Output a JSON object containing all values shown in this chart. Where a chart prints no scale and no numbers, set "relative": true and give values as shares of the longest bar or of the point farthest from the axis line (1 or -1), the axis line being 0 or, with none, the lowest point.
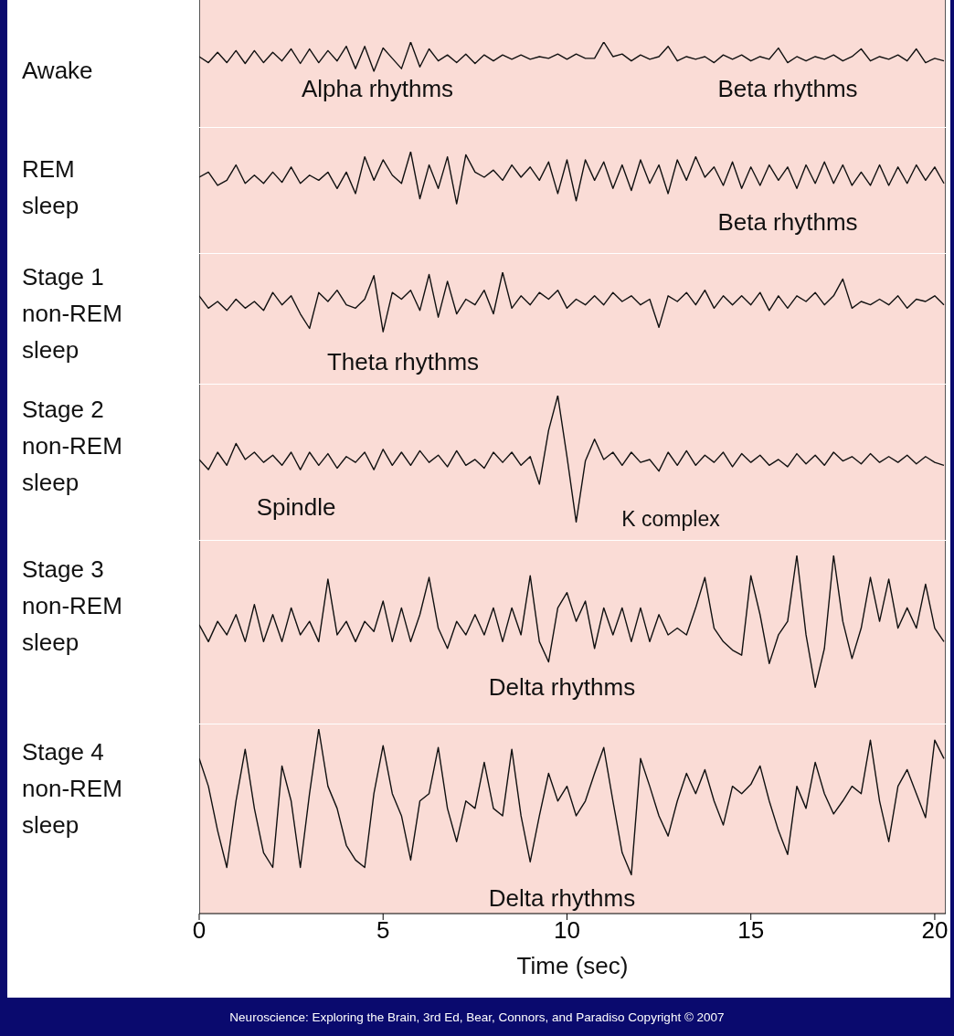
{
  "chart_data": [
    {
      "type": "line",
      "ylabel": "Awake",
      "relative": true,
      "marker": "none",
      "color": "#111111",
      "xlim": [
        0,
        20.3
      ],
      "tick_labels": false,
      "annotations": [
        "Alpha rhythms",
        "Beta rhythms"
      ],
      "x": [
        0,
        0.25,
        0.5,
        0.75,
        1,
        1.25,
        1.5,
        1.75,
        2,
        2.25,
        2.5,
        2.75,
        3,
        3.25,
        3.5,
        3.75,
        4,
        4.25,
        4.5,
        4.75,
        5,
        5.25,
        5.5,
        5.75,
        6,
        6.25,
        6.5,
        6.75,
        7,
        7.25,
        7.5,
        7.75,
        8,
        8.25,
        8.5,
        8.75,
        9,
        9.25,
        9.5,
        9.75,
        10,
        10.25,
        10.5,
        10.75,
        11,
        11.25,
        11.5,
        11.75,
        12,
        12.25,
        12.5,
        12.75,
        13,
        13.25,
        13.5,
        13.75,
        14,
        14.25,
        14.5,
        14.75,
        15,
        15.25,
        15.5,
        15.75,
        16,
        16.25,
        16.5,
        16.75,
        17,
        17.25,
        17.5,
        17.75,
        18,
        18.25,
        18.5,
        18.75,
        19,
        19.25,
        19.5,
        19.75,
        20,
        20.25
      ],
      "values": [
        0.83,
        0.76,
        0.88,
        0.76,
        0.9,
        0.75,
        0.9,
        0.76,
        0.88,
        0.78,
        0.92,
        0.75,
        0.92,
        0.76,
        0.9,
        0.78,
        0.95,
        0.69,
        0.95,
        0.66,
        0.93,
        0.81,
        0.69,
        1,
        0.71,
        0.92,
        0.78,
        0.85,
        0.76,
        0.86,
        0.75,
        0.85,
        0.78,
        0.85,
        0.8,
        0.85,
        0.8,
        0.83,
        0.81,
        0.86,
        0.8,
        0.86,
        0.81,
        0.81,
        1,
        0.83,
        0.86,
        0.78,
        0.85,
        0.8,
        0.83,
        0.95,
        0.78,
        0.83,
        0.8,
        0.83,
        0.76,
        0.85,
        0.8,
        0.85,
        0.78,
        0.83,
        0.8,
        0.93,
        0.76,
        0.83,
        0.78,
        0.83,
        0.8,
        0.85,
        0.78,
        0.83,
        0.92,
        0.78,
        0.83,
        0.8,
        0.85,
        0.78,
        0.92,
        0.76,
        0.81,
        0.78
      ]
    },
    {
      "type": "line",
      "ylabel": "REM sleep",
      "relative": true,
      "marker": "none",
      "color": "#111111",
      "xlim": [
        0,
        20.3
      ],
      "tick_labels": false,
      "annotations": [
        "Beta rhythms"
      ],
      "x": [
        0,
        0.25,
        0.5,
        0.75,
        1,
        1.25,
        1.5,
        1.75,
        2,
        2.25,
        2.5,
        2.75,
        3,
        3.25,
        3.5,
        3.75,
        4,
        4.25,
        4.5,
        4.75,
        5,
        5.25,
        5.5,
        5.75,
        6,
        6.25,
        6.5,
        6.75,
        7,
        7.25,
        7.5,
        7.75,
        8,
        8.25,
        8.5,
        8.75,
        9,
        9.25,
        9.5,
        9.75,
        10,
        10.25,
        10.5,
        10.75,
        11,
        11.25,
        11.5,
        11.75,
        12,
        12.25,
        12.5,
        12.75,
        13,
        13.25,
        13.5,
        13.75,
        14,
        14.25,
        14.5,
        14.75,
        15,
        15.25,
        15.5,
        15.75,
        16,
        16.25,
        16.5,
        16.75,
        17,
        17.25,
        17.5,
        17.75,
        18,
        18.25,
        18.5,
        18.75,
        19,
        19.25,
        19.5,
        19.75,
        20,
        20.25
      ],
      "values": [
        0.75,
        0.8,
        0.67,
        0.72,
        0.87,
        0.69,
        0.77,
        0.69,
        0.8,
        0.7,
        0.85,
        0.69,
        0.77,
        0.72,
        0.8,
        0.64,
        0.8,
        0.59,
        0.95,
        0.72,
        0.92,
        0.77,
        0.69,
        1,
        0.54,
        0.87,
        0.64,
        0.95,
        0.49,
        0.97,
        0.8,
        0.75,
        0.82,
        0.72,
        0.87,
        0.75,
        0.85,
        0.72,
        0.9,
        0.59,
        0.92,
        0.52,
        0.92,
        0.72,
        0.9,
        0.64,
        0.87,
        0.62,
        0.92,
        0.69,
        0.87,
        0.59,
        0.92,
        0.72,
        0.95,
        0.75,
        0.85,
        0.67,
        0.9,
        0.64,
        0.85,
        0.67,
        0.87,
        0.72,
        0.85,
        0.64,
        0.87,
        0.69,
        0.9,
        0.69,
        0.87,
        0.67,
        0.8,
        0.67,
        0.87,
        0.67,
        0.85,
        0.69,
        0.87,
        0.72,
        0.85,
        0.69
      ]
    },
    {
      "type": "line",
      "ylabel": "Stage 1 non-REM sleep",
      "relative": true,
      "marker": "none",
      "color": "#111111",
      "xlim": [
        0,
        20.3
      ],
      "tick_labels": false,
      "annotations": [
        "Theta rhythms"
      ],
      "x": [
        0,
        0.25,
        0.5,
        0.75,
        1,
        1.25,
        1.5,
        1.75,
        2,
        2.25,
        2.5,
        2.75,
        3,
        3.25,
        3.5,
        3.75,
        4,
        4.25,
        4.5,
        4.75,
        5,
        5.25,
        5.5,
        5.75,
        6,
        6.25,
        6.5,
        6.75,
        7,
        7.25,
        7.5,
        7.75,
        8,
        8.25,
        8.5,
        8.75,
        9,
        9.25,
        9.5,
        9.75,
        10,
        10.25,
        10.5,
        10.75,
        11,
        11.25,
        11.5,
        11.75,
        12,
        12.25,
        12.5,
        12.75,
        13,
        13.25,
        13.5,
        13.75,
        14,
        14.25,
        14.5,
        14.75,
        15,
        15.25,
        15.5,
        15.75,
        16,
        16.25,
        16.5,
        16.75,
        17,
        17.25,
        17.5,
        17.75,
        18,
        18.25,
        18.5,
        18.75,
        19,
        19.25,
        19.5,
        19.75,
        20,
        20.25
      ],
      "values": [
        0.79,
        0.68,
        0.74,
        0.66,
        0.76,
        0.68,
        0.74,
        0.66,
        0.82,
        0.71,
        0.79,
        0.63,
        0.5,
        0.82,
        0.74,
        0.84,
        0.71,
        0.68,
        0.76,
        0.97,
        0.47,
        0.82,
        0.76,
        0.84,
        0.66,
        0.98,
        0.6,
        0.92,
        0.63,
        0.76,
        0.71,
        0.84,
        0.63,
        1,
        0.68,
        0.79,
        0.71,
        0.82,
        0.76,
        0.84,
        0.68,
        0.76,
        0.71,
        0.79,
        0.71,
        0.82,
        0.74,
        0.79,
        0.71,
        0.76,
        0.51,
        0.79,
        0.74,
        0.82,
        0.71,
        0.84,
        0.68,
        0.79,
        0.71,
        0.79,
        0.71,
        0.82,
        0.66,
        0.79,
        0.68,
        0.79,
        0.74,
        0.82,
        0.71,
        0.79,
        0.94,
        0.68,
        0.74,
        0.71,
        0.76,
        0.71,
        0.79,
        0.68,
        0.76,
        0.74,
        0.79,
        0.71
      ]
    },
    {
      "type": "line",
      "ylabel": "Stage 2 non-REM sleep",
      "relative": true,
      "marker": "none",
      "color": "#111111",
      "xlim": [
        0,
        20.3
      ],
      "tick_labels": false,
      "annotations": [
        "Spindle",
        "K complex"
      ],
      "x": [
        0,
        0.25,
        0.5,
        0.75,
        1,
        1.25,
        1.5,
        1.75,
        2,
        2.25,
        2.5,
        2.75,
        3,
        3.25,
        3.5,
        3.75,
        4,
        4.25,
        4.5,
        4.75,
        5,
        5.25,
        5.5,
        5.75,
        6,
        6.25,
        6.5,
        6.75,
        7,
        7.25,
        7.5,
        7.75,
        8,
        8.25,
        8.5,
        8.75,
        9,
        9.25,
        9.5,
        9.75,
        10,
        10.25,
        10.5,
        10.75,
        11,
        11.25,
        11.5,
        11.75,
        12,
        12.25,
        12.5,
        12.75,
        13,
        13.25,
        13.5,
        13.75,
        14,
        14.25,
        14.5,
        14.75,
        15,
        15.25,
        15.5,
        15.75,
        16,
        16.25,
        16.5,
        16.75,
        17,
        17.25,
        17.5,
        17.75,
        18,
        18.25,
        18.5,
        18.75,
        19,
        19.25,
        19.5,
        19.75,
        20,
        20.25
      ],
      "values": [
        0.56,
        0.49,
        0.61,
        0.52,
        0.67,
        0.56,
        0.61,
        0.54,
        0.59,
        0.52,
        0.61,
        0.49,
        0.61,
        0.52,
        0.6,
        0.5,
        0.58,
        0.54,
        0.61,
        0.49,
        0.63,
        0.52,
        0.61,
        0.52,
        0.62,
        0.54,
        0.59,
        0.51,
        0.62,
        0.52,
        0.56,
        0.5,
        0.61,
        0.54,
        0.61,
        0.52,
        0.58,
        0.39,
        0.76,
        1,
        0.58,
        0.13,
        0.55,
        0.7,
        0.56,
        0.61,
        0.52,
        0.61,
        0.54,
        0.56,
        0.48,
        0.61,
        0.52,
        0.62,
        0.52,
        0.59,
        0.54,
        0.61,
        0.51,
        0.6,
        0.54,
        0.59,
        0.52,
        0.56,
        0.51,
        0.6,
        0.53,
        0.59,
        0.52,
        0.61,
        0.55,
        0.58,
        0.53,
        0.6,
        0.54,
        0.58,
        0.54,
        0.59,
        0.53,
        0.58,
        0.54,
        0.52
      ]
    },
    {
      "type": "line",
      "ylabel": "Stage 3 non-REM sleep",
      "relative": true,
      "marker": "none",
      "color": "#111111",
      "xlim": [
        0,
        20.3
      ],
      "tick_labels": false,
      "annotations": [
        "Delta rhythms"
      ],
      "x": [
        0,
        0.25,
        0.5,
        0.75,
        1,
        1.25,
        1.5,
        1.75,
        2,
        2.25,
        2.5,
        2.75,
        3,
        3.25,
        3.5,
        3.75,
        4,
        4.25,
        4.5,
        4.75,
        5,
        5.25,
        5.5,
        5.75,
        6,
        6.25,
        6.5,
        6.75,
        7,
        7.25,
        7.5,
        7.75,
        8,
        8.25,
        8.5,
        8.75,
        9,
        9.25,
        9.5,
        9.75,
        10,
        10.25,
        10.5,
        10.75,
        11,
        11.25,
        11.5,
        11.75,
        12,
        12.25,
        12.5,
        12.75,
        13,
        13.25,
        13.5,
        13.75,
        14,
        14.25,
        14.5,
        14.75,
        15,
        15.25,
        15.5,
        15.75,
        16,
        16.25,
        16.5,
        16.75,
        17,
        17.25,
        17.5,
        17.75,
        18,
        18.25,
        18.5,
        18.75,
        19,
        19.25,
        19.5,
        19.75,
        20,
        20.25
      ],
      "values": [
        0.59,
        0.49,
        0.61,
        0.53,
        0.65,
        0.49,
        0.71,
        0.49,
        0.65,
        0.49,
        0.69,
        0.53,
        0.61,
        0.49,
        0.86,
        0.53,
        0.61,
        0.49,
        0.61,
        0.55,
        0.73,
        0.49,
        0.69,
        0.49,
        0.65,
        0.87,
        0.57,
        0.45,
        0.61,
        0.53,
        0.65,
        0.53,
        0.69,
        0.49,
        0.69,
        0.53,
        0.88,
        0.49,
        0.37,
        0.69,
        0.78,
        0.61,
        0.73,
        0.45,
        0.69,
        0.53,
        0.69,
        0.49,
        0.69,
        0.49,
        0.65,
        0.53,
        0.57,
        0.53,
        0.69,
        0.87,
        0.57,
        0.49,
        0.44,
        0.41,
        0.88,
        0.65,
        0.36,
        0.53,
        0.61,
        1,
        0.53,
        0.22,
        0.45,
        1,
        0.61,
        0.39,
        0.57,
        0.87,
        0.61,
        0.86,
        0.57,
        0.69,
        0.57,
        0.83,
        0.57,
        0.49
      ]
    },
    {
      "type": "line",
      "ylabel": "Stage 4 non-REM sleep",
      "xlabel": "Time (sec)",
      "relative": true,
      "marker": "none",
      "color": "#111111",
      "xlim": [
        0,
        20.3
      ],
      "xticks": [
        0,
        5,
        10,
        15,
        20
      ],
      "tick_labels": "x",
      "annotations": [
        "Delta rhythms",
        "Neuroscience: Exploring the Brain, 3rd Ed, Bear, Connors, and Paradiso Copyright © 2007"
      ],
      "x": [
        0,
        0.25,
        0.5,
        0.75,
        1,
        1.25,
        1.5,
        1.75,
        2,
        2.25,
        2.5,
        2.75,
        3,
        3.25,
        3.5,
        3.75,
        4,
        4.25,
        4.5,
        4.75,
        5,
        5.25,
        5.5,
        5.75,
        6,
        6.25,
        6.5,
        6.75,
        7,
        7.25,
        7.5,
        7.75,
        8,
        8.25,
        8.5,
        8.75,
        9,
        9.25,
        9.5,
        9.75,
        10,
        10.25,
        10.5,
        10.75,
        11,
        11.25,
        11.5,
        11.75,
        12,
        12.25,
        12.5,
        12.75,
        13,
        13.25,
        13.5,
        13.75,
        14,
        14.25,
        14.5,
        14.75,
        15,
        15.25,
        15.5,
        15.75,
        16,
        16.25,
        16.5,
        16.75,
        17,
        17.25,
        17.5,
        17.75,
        18,
        18.25,
        18.5,
        18.75,
        19,
        19.25,
        19.5,
        19.75,
        20,
        20.25
      ],
      "values": [
        0.84,
        0.69,
        0.45,
        0.25,
        0.61,
        0.89,
        0.57,
        0.33,
        0.25,
        0.8,
        0.61,
        0.25,
        0.65,
        1,
        0.69,
        0.57,
        0.37,
        0.29,
        0.25,
        0.65,
        0.91,
        0.65,
        0.53,
        0.29,
        0.61,
        0.65,
        0.9,
        0.57,
        0.39,
        0.61,
        0.57,
        0.82,
        0.57,
        0.53,
        0.89,
        0.53,
        0.28,
        0.53,
        0.76,
        0.61,
        0.69,
        0.53,
        0.61,
        0.76,
        0.9,
        0.61,
        0.33,
        0.21,
        0.84,
        0.69,
        0.53,
        0.42,
        0.61,
        0.76,
        0.65,
        0.78,
        0.61,
        0.48,
        0.69,
        0.65,
        0.7,
        0.8,
        0.61,
        0.45,
        0.32,
        0.69,
        0.57,
        0.82,
        0.65,
        0.54,
        0.61,
        0.69,
        0.65,
        0.94,
        0.61,
        0.39,
        0.69,
        0.78,
        0.65,
        0.52,
        0.94,
        0.84
      ]
    }
  ]
}
